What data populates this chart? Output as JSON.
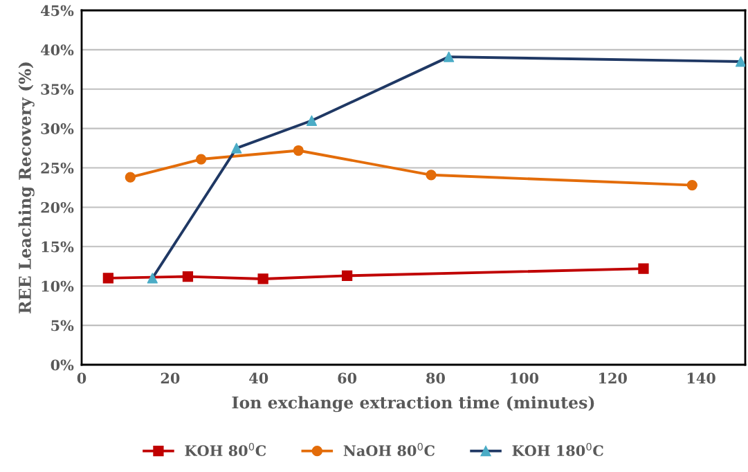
{
  "chart_data": {
    "type": "line",
    "xlabel": "Ion exchange extraction time (minutes)",
    "ylabel": "REE Leaching Recovery (%)",
    "xlim": [
      0,
      150
    ],
    "xticks": [
      0,
      20,
      40,
      60,
      80,
      100,
      120,
      140
    ],
    "ylim": [
      0,
      45
    ],
    "yticks": [
      {
        "value": 0,
        "label": "0%"
      },
      {
        "value": 5,
        "label": "5%"
      },
      {
        "value": 10,
        "label": "10%"
      },
      {
        "value": 15,
        "label": "15%"
      },
      {
        "value": 20,
        "label": "20%"
      },
      {
        "value": 25,
        "label": "25%"
      },
      {
        "value": 30,
        "label": "30%"
      },
      {
        "value": 35,
        "label": "35%"
      },
      {
        "value": 40,
        "label": "40%"
      },
      {
        "value": 45,
        "label": "45%"
      }
    ],
    "grid": "y",
    "legend": "bottom",
    "line_style": "solid",
    "series": [
      {
        "name": "KOH 80$^{0}$C",
        "color": "#c00000",
        "marker": "square",
        "x": [
          6,
          24,
          41,
          60,
          127
        ],
        "values": [
          11.0,
          11.2,
          10.9,
          11.3,
          12.2
        ]
      },
      {
        "name": "NaOH 80$^{0}$C",
        "color": "#e36c09",
        "marker": "circle",
        "x": [
          11,
          27,
          49,
          79,
          138
        ],
        "values": [
          23.8,
          26.1,
          27.2,
          24.1,
          22.8
        ]
      },
      {
        "name": "KOH 180$^{0}$C",
        "color": "#1f3864",
        "marker": "triangle",
        "colors": [
          "#4bacc6",
          "#4bacc6",
          "#4bacc6",
          "#4bacc6",
          "#4bacc6"
        ],
        "x": [
          16,
          35,
          52,
          83,
          149
        ],
        "values": [
          11.0,
          27.5,
          31.0,
          39.1,
          38.5
        ]
      }
    ]
  }
}
